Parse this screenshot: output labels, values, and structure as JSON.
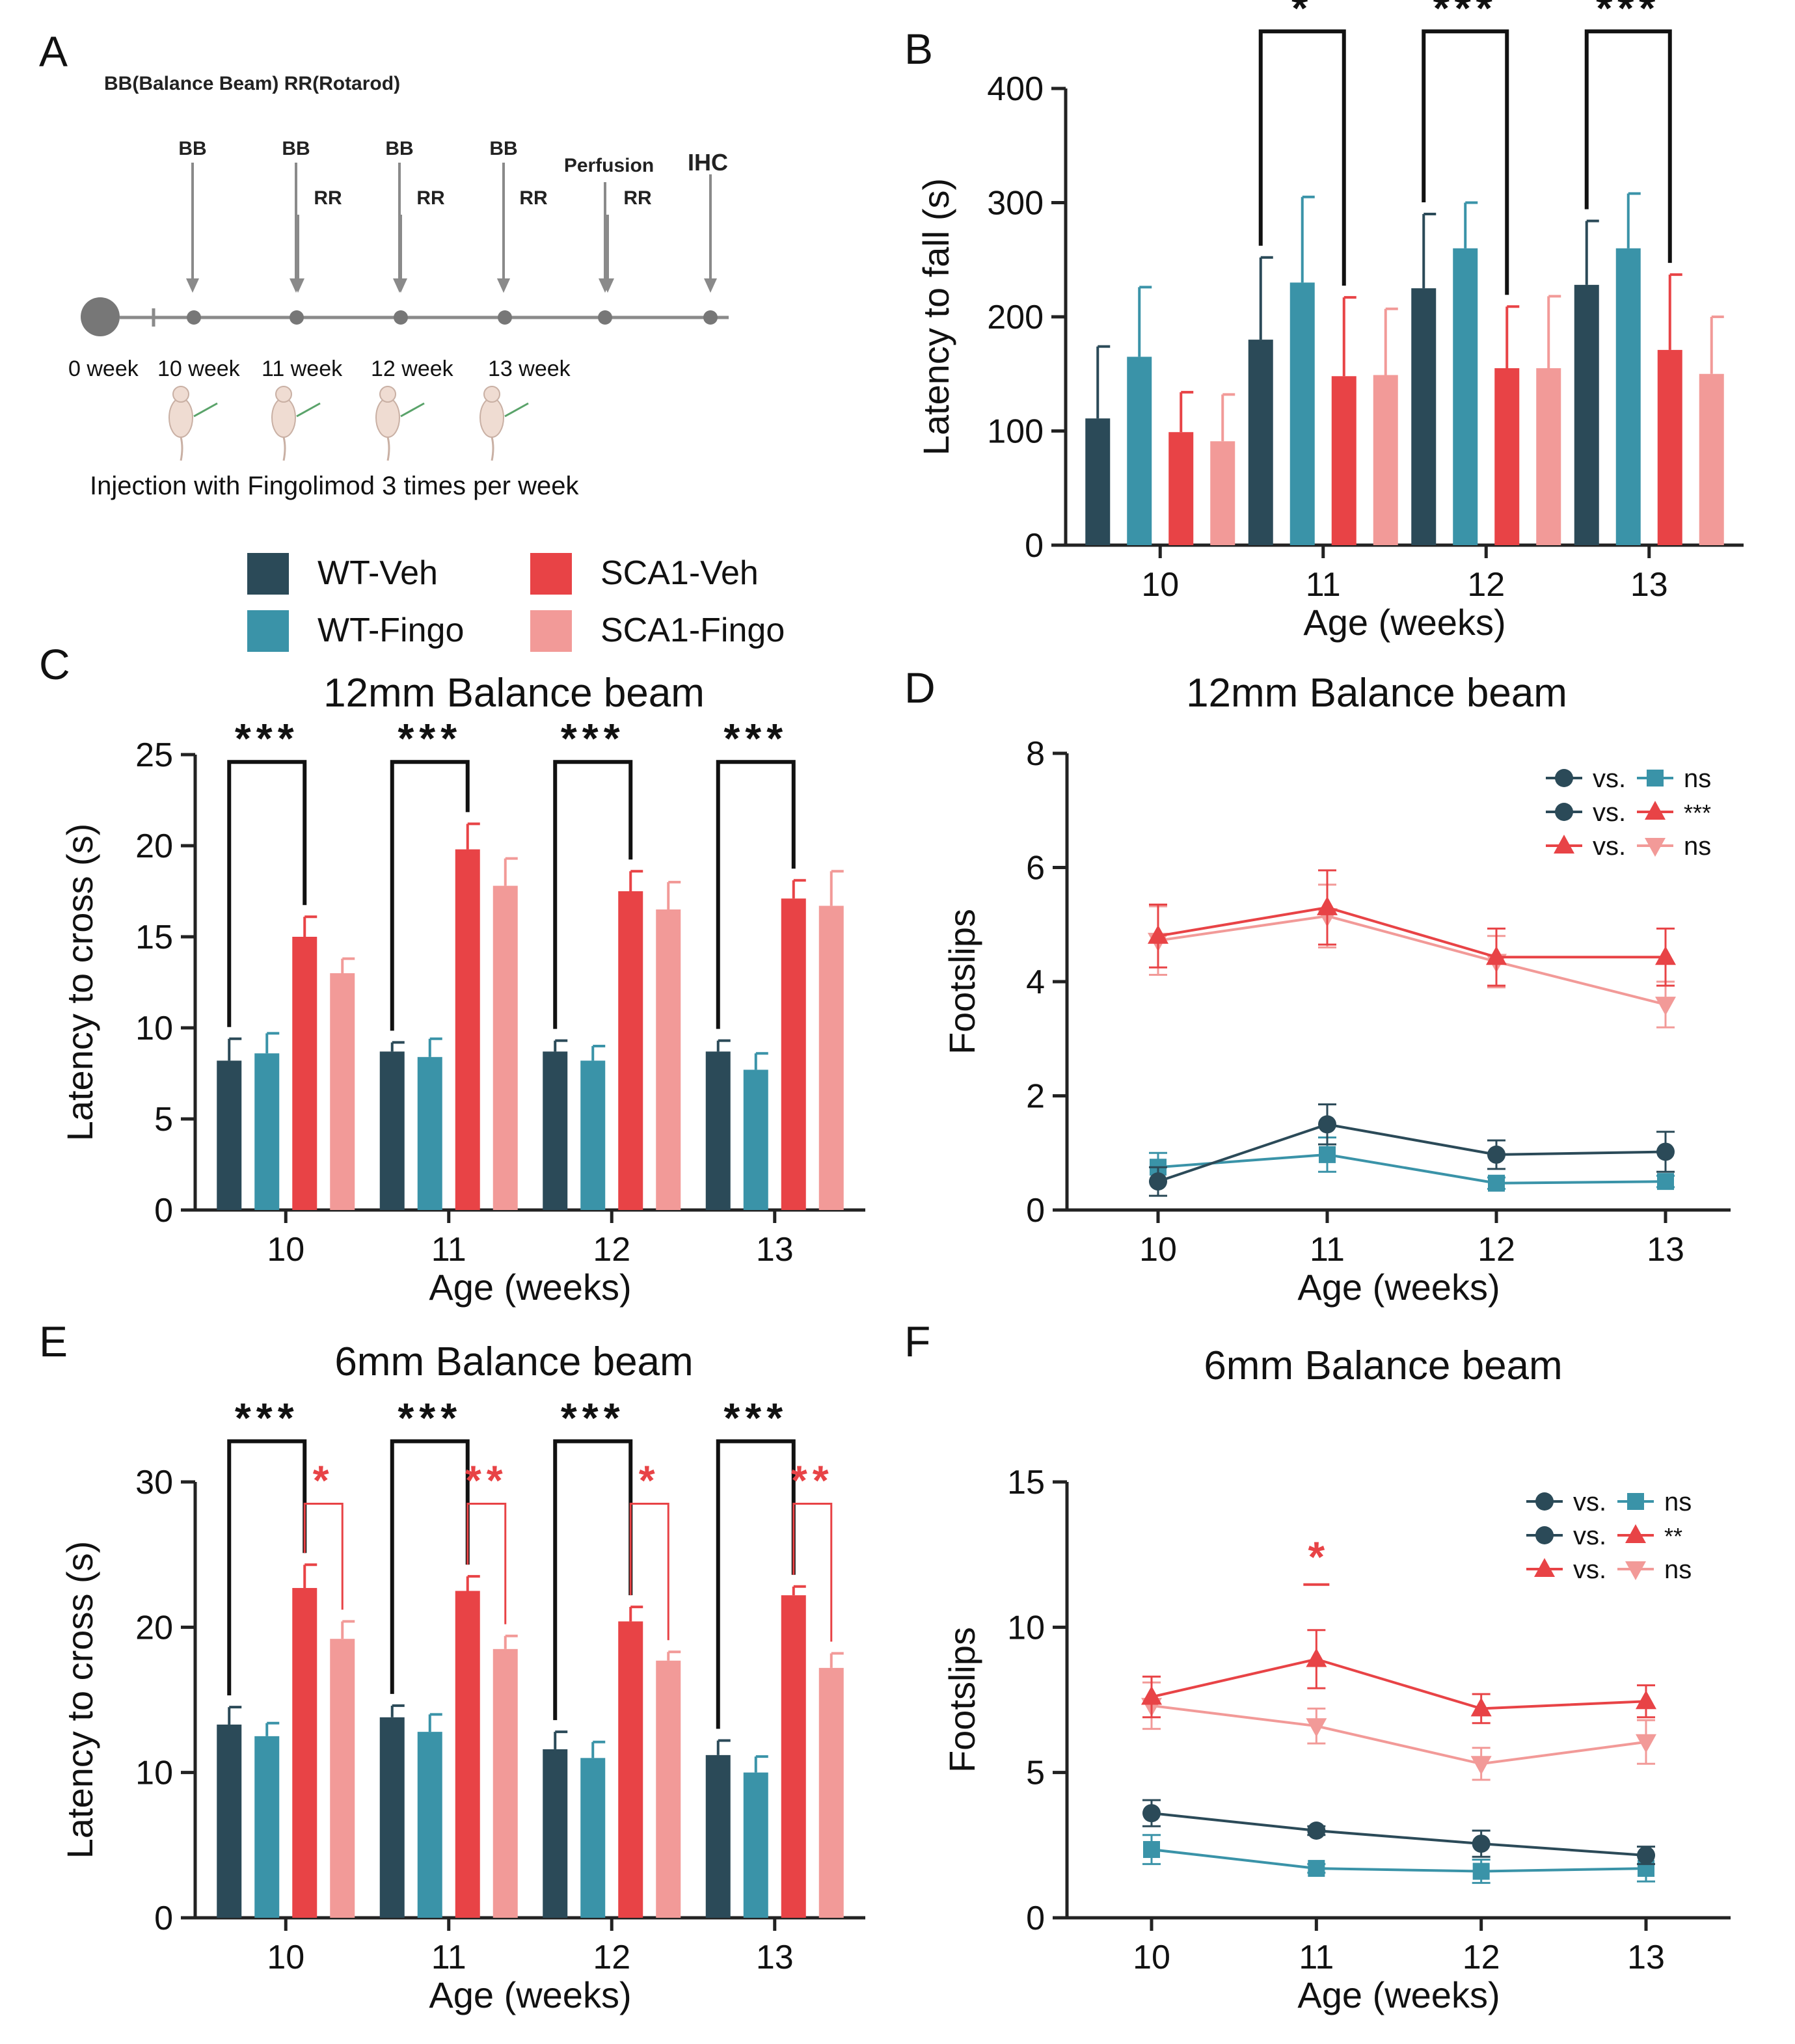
{
  "panel_labels": [
    "A",
    "B",
    "C",
    "D",
    "E",
    "F"
  ],
  "timeline": {
    "header": "BB(Balance Beam)  RR(Rotarod)",
    "bb_label": "BB",
    "rr_label": "RR",
    "perfusion_label": "Perfusion",
    "ihc_label": "IHC",
    "week_labels": [
      "0 week",
      "10 week",
      "11 week",
      "12 week",
      "13 week"
    ],
    "injection_text": "Injection with Fingolimod 3 times per week"
  },
  "colors": {
    "WT-Veh": "#2b4a58",
    "WT-Fingo": "#3a93a8",
    "SCA1-Veh": "#e84346",
    "SCA1-Fingo": "#f29a98",
    "sig_black": "#111111",
    "sig_red": "#e84346",
    "axis": "#222222",
    "timeline": "#8a8a8a"
  },
  "legend": {
    "entries": [
      "WT-Veh",
      "SCA1-Veh",
      "WT-Fingo",
      "SCA1-Fingo"
    ]
  },
  "chart_data": [
    {
      "id": "B",
      "type": "bar",
      "title": "",
      "xlabel": "Age (weeks)",
      "ylabel": "Latency to fall (s)",
      "categories": [
        "10",
        "11",
        "12",
        "13"
      ],
      "ylim": [
        0,
        400
      ],
      "yticks": [
        0,
        100,
        200,
        300,
        400
      ],
      "series": [
        {
          "name": "WT-Veh",
          "values": [
            111,
            180,
            225,
            228
          ],
          "errors": [
            63,
            72,
            65,
            56
          ]
        },
        {
          "name": "WT-Fingo",
          "values": [
            165,
            230,
            260,
            260
          ],
          "errors": [
            61,
            75,
            40,
            48
          ]
        },
        {
          "name": "SCA1-Veh",
          "values": [
            99,
            148,
            155,
            171
          ],
          "errors": [
            35,
            69,
            54,
            66
          ]
        },
        {
          "name": "SCA1-Fingo",
          "values": [
            91,
            149,
            155,
            150
          ],
          "errors": [
            41,
            58,
            63,
            50
          ]
        }
      ],
      "significance": [
        {
          "group": "11",
          "from": "WT-Veh",
          "to": "SCA1-Veh",
          "label": "*",
          "color": "black"
        },
        {
          "group": "12",
          "from": "WT-Veh",
          "to": "SCA1-Veh",
          "label": "***",
          "color": "black"
        },
        {
          "group": "13",
          "from": "WT-Veh",
          "to": "SCA1-Veh",
          "label": "***",
          "color": "black"
        }
      ]
    },
    {
      "id": "C",
      "type": "bar",
      "title": "12mm Balance beam",
      "xlabel": "Age (weeks)",
      "ylabel": "Latency to cross (s)",
      "categories": [
        "10",
        "11",
        "12",
        "13"
      ],
      "ylim": [
        0,
        25
      ],
      "yticks": [
        0,
        5,
        10,
        15,
        20,
        25
      ],
      "series": [
        {
          "name": "WT-Veh",
          "values": [
            8.2,
            8.7,
            8.7,
            8.7
          ],
          "errors": [
            1.2,
            0.5,
            0.6,
            0.6
          ]
        },
        {
          "name": "WT-Fingo",
          "values": [
            8.6,
            8.4,
            8.2,
            7.7
          ],
          "errors": [
            1.1,
            1.0,
            0.8,
            0.9
          ]
        },
        {
          "name": "SCA1-Veh",
          "values": [
            15.0,
            19.8,
            17.5,
            17.1
          ],
          "errors": [
            1.1,
            1.4,
            1.1,
            1.0
          ]
        },
        {
          "name": "SCA1-Fingo",
          "values": [
            13.0,
            17.8,
            16.5,
            16.7
          ],
          "errors": [
            0.8,
            1.5,
            1.5,
            1.9
          ]
        }
      ],
      "significance": [
        {
          "group": "10",
          "from": "WT-Veh",
          "to": "SCA1-Veh",
          "label": "***",
          "color": "black"
        },
        {
          "group": "11",
          "from": "WT-Veh",
          "to": "SCA1-Veh",
          "label": "***",
          "color": "black"
        },
        {
          "group": "12",
          "from": "WT-Veh",
          "to": "SCA1-Veh",
          "label": "***",
          "color": "black"
        },
        {
          "group": "13",
          "from": "WT-Veh",
          "to": "SCA1-Veh",
          "label": "***",
          "color": "black"
        }
      ]
    },
    {
      "id": "D",
      "type": "line",
      "title": "12mm Balance beam",
      "xlabel": "Age (weeks)",
      "ylabel": "Footslips",
      "x": [
        10,
        11,
        12,
        13
      ],
      "ylim": [
        0,
        8
      ],
      "yticks": [
        0,
        2,
        4,
        6,
        8
      ],
      "series": [
        {
          "name": "WT-Veh",
          "marker": "circle",
          "values": [
            0.5,
            1.5,
            0.97,
            1.02
          ],
          "errors": [
            0.25,
            0.35,
            0.25,
            0.35
          ]
        },
        {
          "name": "WT-Fingo",
          "marker": "square",
          "values": [
            0.75,
            0.97,
            0.47,
            0.5
          ],
          "errors": [
            0.25,
            0.3,
            0.1,
            0.1
          ]
        },
        {
          "name": "SCA1-Veh",
          "marker": "triangle-up",
          "values": [
            4.8,
            5.3,
            4.43,
            4.43
          ],
          "errors": [
            0.55,
            0.65,
            0.5,
            0.5
          ]
        },
        {
          "name": "SCA1-Fingo",
          "marker": "triangle-down",
          "values": [
            4.72,
            5.15,
            4.35,
            3.6
          ],
          "errors": [
            0.6,
            0.55,
            0.45,
            0.4
          ]
        }
      ],
      "legend_rows": [
        {
          "left": "WT-Veh",
          "right": "WT-Fingo",
          "word": "vs.",
          "result": "ns"
        },
        {
          "left": "WT-Veh",
          "right": "SCA1-Veh",
          "word": "vs.",
          "result": "***"
        },
        {
          "left": "SCA1-Veh",
          "right": "SCA1-Fingo",
          "word": "vs.",
          "result": "ns"
        }
      ]
    },
    {
      "id": "E",
      "type": "bar",
      "title": "6mm Balance beam",
      "xlabel": "Age (weeks)",
      "ylabel": "Latency to cross (s)",
      "categories": [
        "10",
        "11",
        "12",
        "13"
      ],
      "ylim": [
        0,
        30
      ],
      "yticks": [
        0,
        10,
        20,
        30
      ],
      "series": [
        {
          "name": "WT-Veh",
          "values": [
            13.3,
            13.8,
            11.6,
            11.2
          ],
          "errors": [
            1.2,
            0.8,
            1.2,
            1.0
          ]
        },
        {
          "name": "WT-Fingo",
          "values": [
            12.5,
            12.8,
            11.0,
            10.0
          ],
          "errors": [
            0.9,
            1.2,
            1.1,
            1.1
          ]
        },
        {
          "name": "SCA1-Veh",
          "values": [
            22.7,
            22.5,
            20.4,
            22.2
          ],
          "errors": [
            1.6,
            1.0,
            1.0,
            0.6
          ]
        },
        {
          "name": "SCA1-Fingo",
          "values": [
            19.2,
            18.5,
            17.7,
            17.2
          ],
          "errors": [
            1.2,
            0.9,
            0.6,
            1.0
          ]
        }
      ],
      "significance": [
        {
          "group": "10",
          "from": "WT-Veh",
          "to": "SCA1-Veh",
          "label": "***",
          "color": "black"
        },
        {
          "group": "11",
          "from": "WT-Veh",
          "to": "SCA1-Veh",
          "label": "***",
          "color": "black"
        },
        {
          "group": "12",
          "from": "WT-Veh",
          "to": "SCA1-Veh",
          "label": "***",
          "color": "black"
        },
        {
          "group": "13",
          "from": "WT-Veh",
          "to": "SCA1-Veh",
          "label": "***",
          "color": "black"
        },
        {
          "group": "10",
          "from": "SCA1-Veh",
          "to": "SCA1-Fingo",
          "label": "*",
          "color": "red"
        },
        {
          "group": "11",
          "from": "SCA1-Veh",
          "to": "SCA1-Fingo",
          "label": "**",
          "color": "red"
        },
        {
          "group": "12",
          "from": "SCA1-Veh",
          "to": "SCA1-Fingo",
          "label": "*",
          "color": "red"
        },
        {
          "group": "13",
          "from": "SCA1-Veh",
          "to": "SCA1-Fingo",
          "label": "**",
          "color": "red"
        }
      ]
    },
    {
      "id": "F",
      "type": "line",
      "title": "6mm Balance beam",
      "xlabel": "Age (weeks)",
      "ylabel": "Footslips",
      "x": [
        10,
        11,
        12,
        13
      ],
      "ylim": [
        0,
        15
      ],
      "yticks": [
        0,
        5,
        10,
        15
      ],
      "series": [
        {
          "name": "WT-Veh",
          "marker": "circle",
          "values": [
            3.6,
            3.0,
            2.55,
            2.15
          ],
          "errors": [
            0.45,
            0.15,
            0.45,
            0.3
          ]
        },
        {
          "name": "WT-Fingo",
          "marker": "square",
          "values": [
            2.35,
            1.7,
            1.6,
            1.7
          ],
          "errors": [
            0.5,
            0.15,
            0.4,
            0.45
          ]
        },
        {
          "name": "SCA1-Veh",
          "marker": "triangle-up",
          "values": [
            7.6,
            8.9,
            7.2,
            7.45
          ],
          "errors": [
            0.7,
            1.0,
            0.5,
            0.55
          ]
        },
        {
          "name": "SCA1-Fingo",
          "marker": "triangle-down",
          "values": [
            7.3,
            6.6,
            5.3,
            6.05
          ],
          "errors": [
            0.8,
            0.6,
            0.55,
            0.75
          ]
        }
      ],
      "annotations": [
        {
          "x": 11,
          "label": "*",
          "color": "red"
        }
      ],
      "legend_rows": [
        {
          "left": "WT-Veh",
          "right": "WT-Fingo",
          "word": "vs.",
          "result": "ns"
        },
        {
          "left": "WT-Veh",
          "right": "SCA1-Veh",
          "word": "vs.",
          "result": "**"
        },
        {
          "left": "SCA1-Veh",
          "right": "SCA1-Fingo",
          "word": "vs.",
          "result": "ns"
        }
      ]
    }
  ]
}
